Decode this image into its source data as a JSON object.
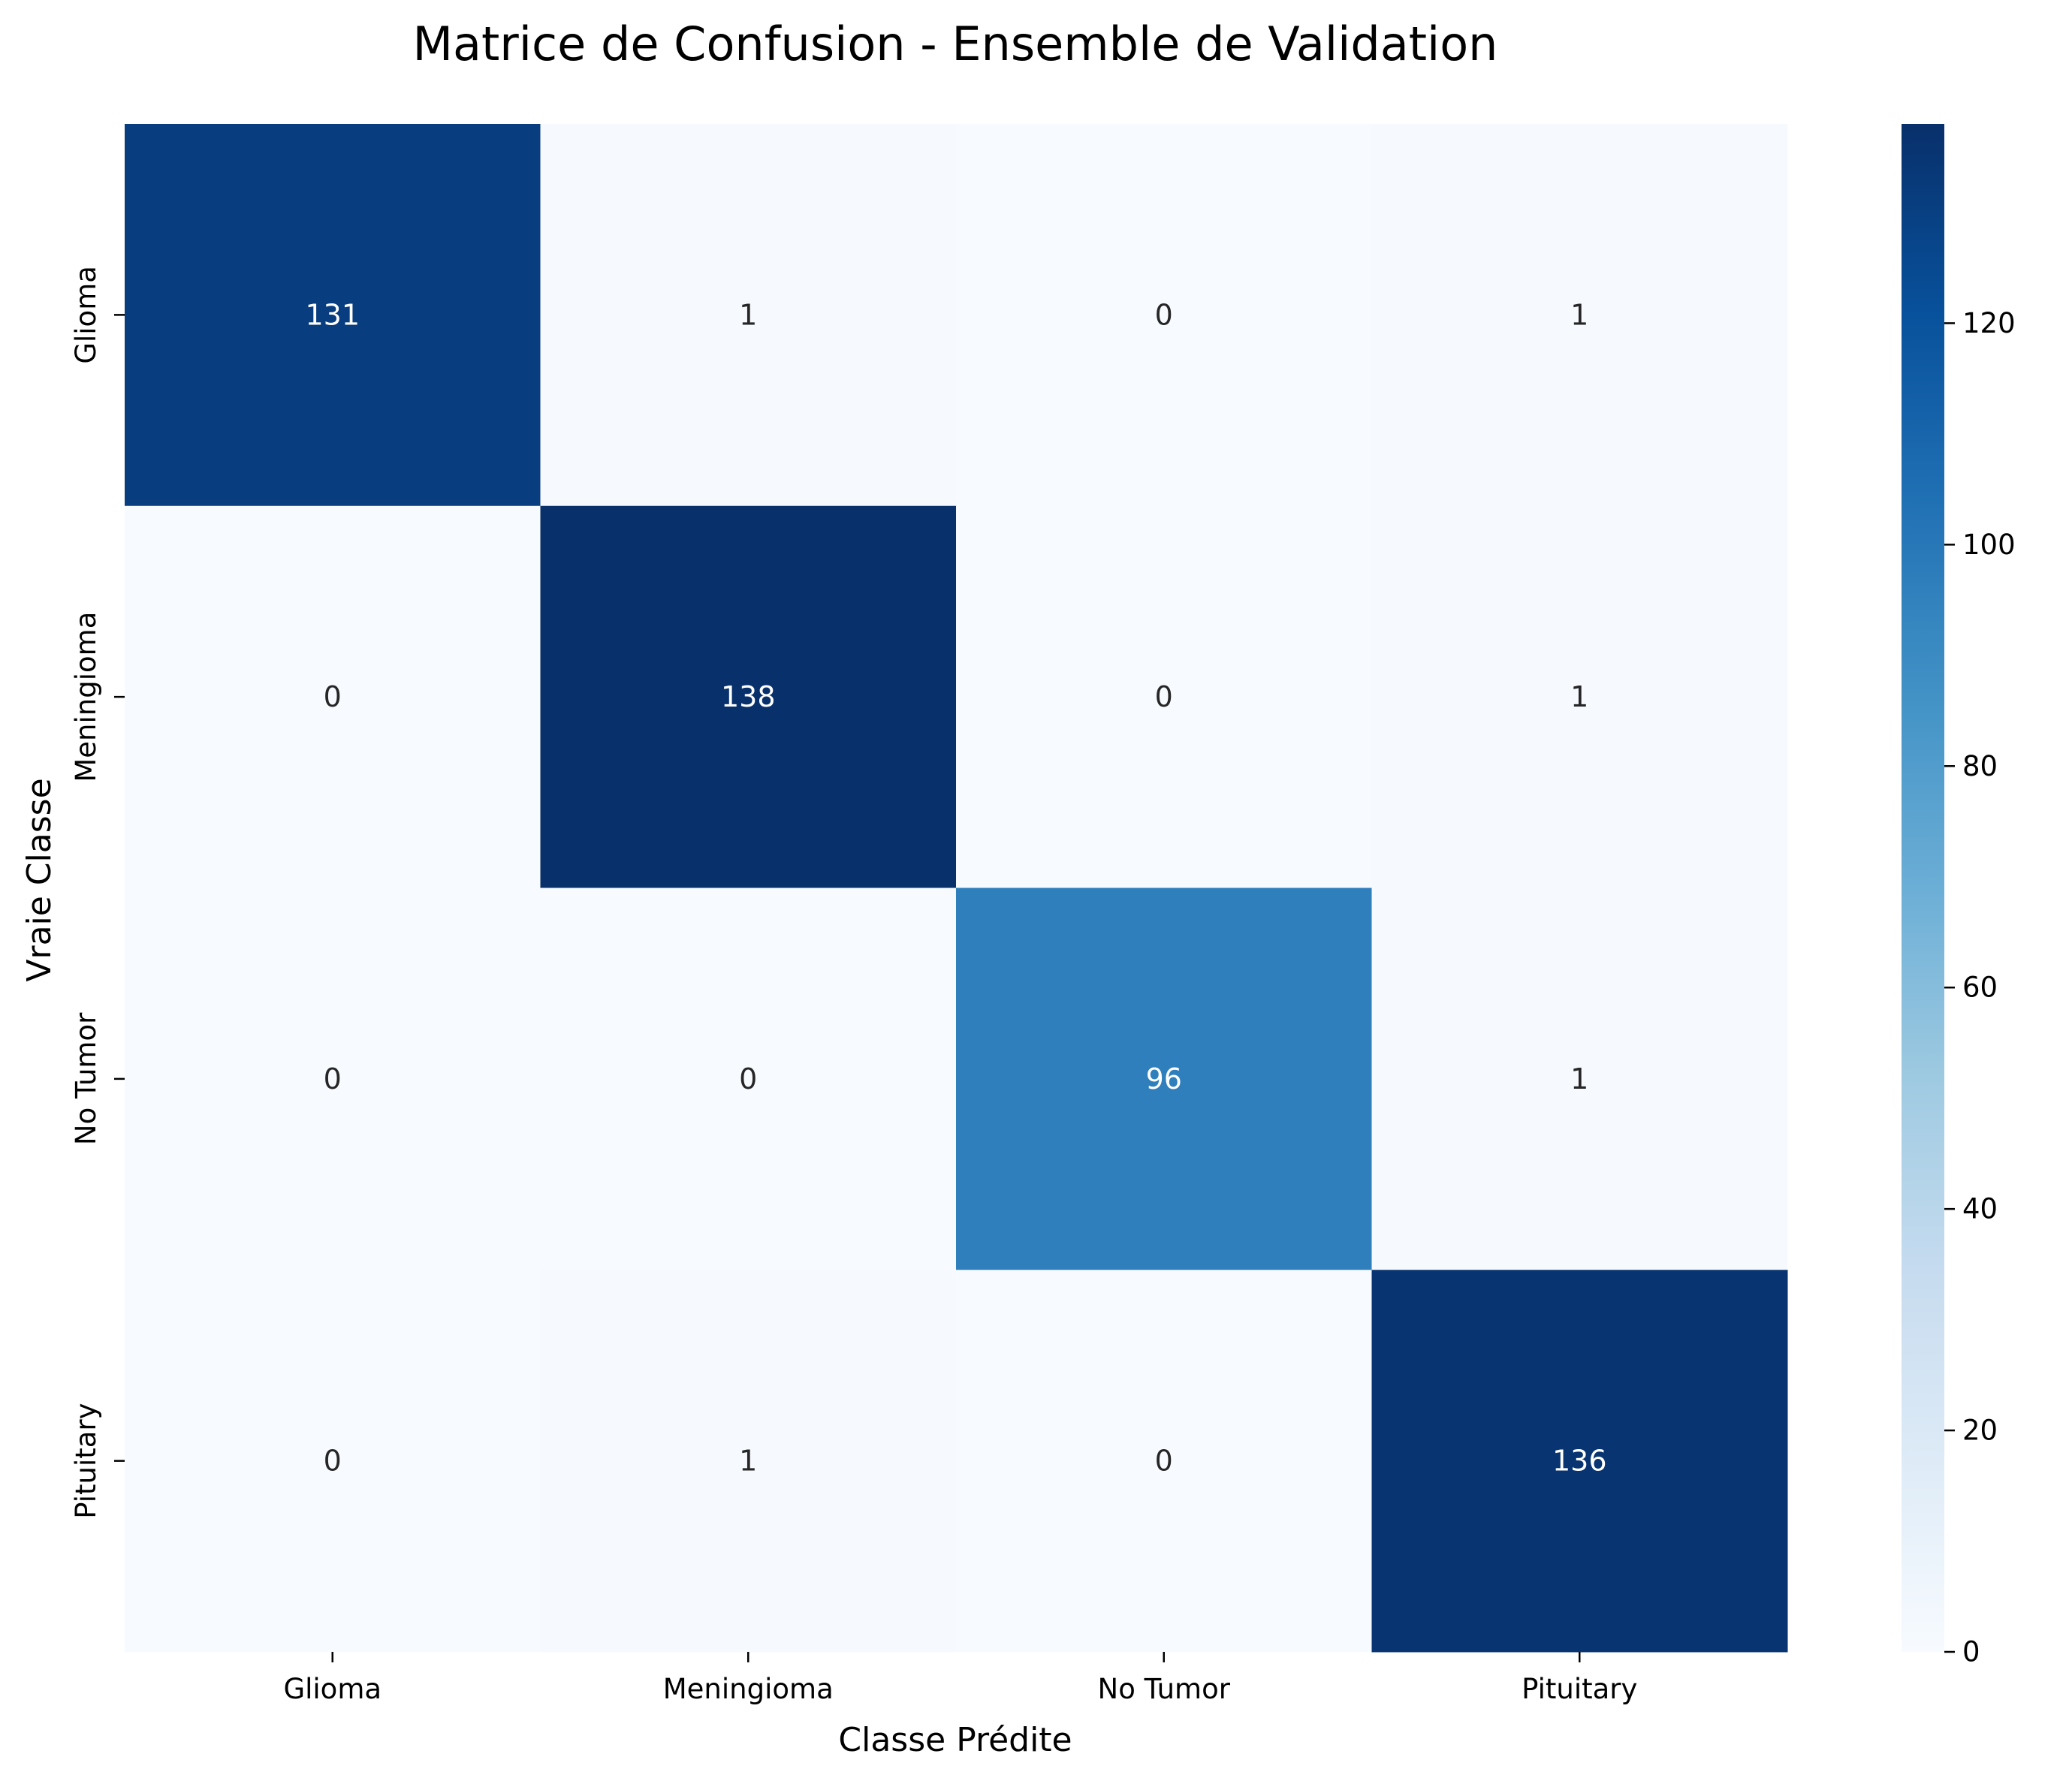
{
  "chart_data": {
    "type": "heatmap",
    "title": "Matrice de Confusion - Ensemble de Validation",
    "xlabel": "Classe Prédite",
    "ylabel": "Vraie Classe",
    "x_categories": [
      "Glioma",
      "Meningioma",
      "No Tumor",
      "Pituitary"
    ],
    "y_categories": [
      "Glioma",
      "Meningioma",
      "No Tumor",
      "Pituitary"
    ],
    "matrix": [
      [
        131,
        1,
        0,
        1
      ],
      [
        0,
        138,
        0,
        1
      ],
      [
        0,
        0,
        96,
        1
      ],
      [
        0,
        1,
        0,
        136
      ]
    ],
    "colorscale": "Blues",
    "vmin": 0,
    "vmax": 138,
    "colorbar_ticks": [
      0,
      20,
      40,
      60,
      80,
      100,
      120
    ]
  }
}
